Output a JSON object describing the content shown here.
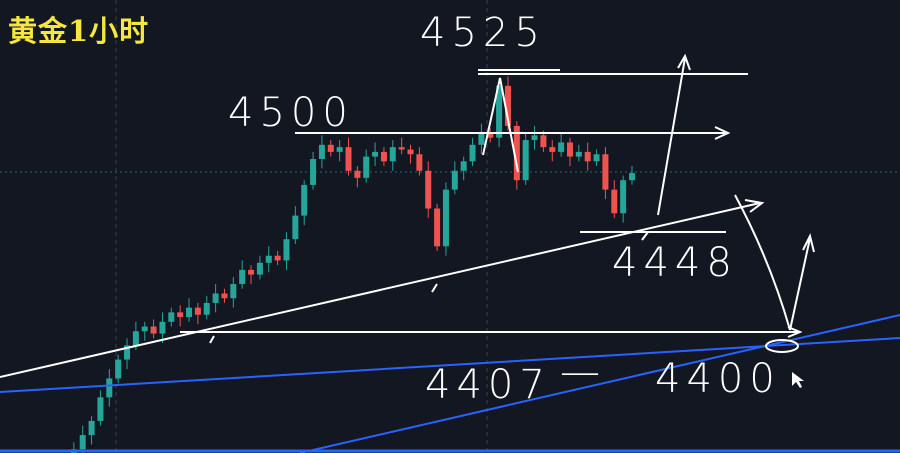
{
  "title": "黄金1小时",
  "colors": {
    "background": "#131722",
    "up": "#26a69a",
    "down": "#ef5350",
    "annotation": "#ffffff",
    "trendline": "#2962ff",
    "title": "#f5e642"
  },
  "annotations": {
    "level_high": "4525",
    "level_resistance": "4500",
    "level_support": "4448",
    "level_target_a": "4407",
    "level_target_sep": "—",
    "level_target_b": "4400"
  },
  "chart_data": {
    "type": "candlestick",
    "title": "黄金1小时",
    "closes": [
      4362,
      4366,
      4372,
      4378,
      4388,
      4396,
      4404,
      4410,
      4416,
      4418,
      4415,
      4420,
      4424,
      4422,
      4426,
      4423,
      4428,
      4432,
      4430,
      4436,
      4442,
      4440,
      4445,
      4448,
      4446,
      4455,
      4465,
      4478,
      4489,
      4495,
      4492,
      4494,
      4484,
      4481,
      4490,
      4492,
      4488,
      4494,
      4493,
      4491,
      4484,
      4468,
      4452,
      4476,
      4484,
      4488,
      4495,
      4500,
      4498,
      4520,
      4503,
      4480,
      4497,
      4499,
      4494,
      4492,
      4496,
      4490,
      4492,
      4488,
      4491,
      4476,
      4466,
      4480,
      4483
    ],
    "horizontal_levels": [
      4525,
      4500,
      4448,
      4407
    ],
    "grid": false
  }
}
